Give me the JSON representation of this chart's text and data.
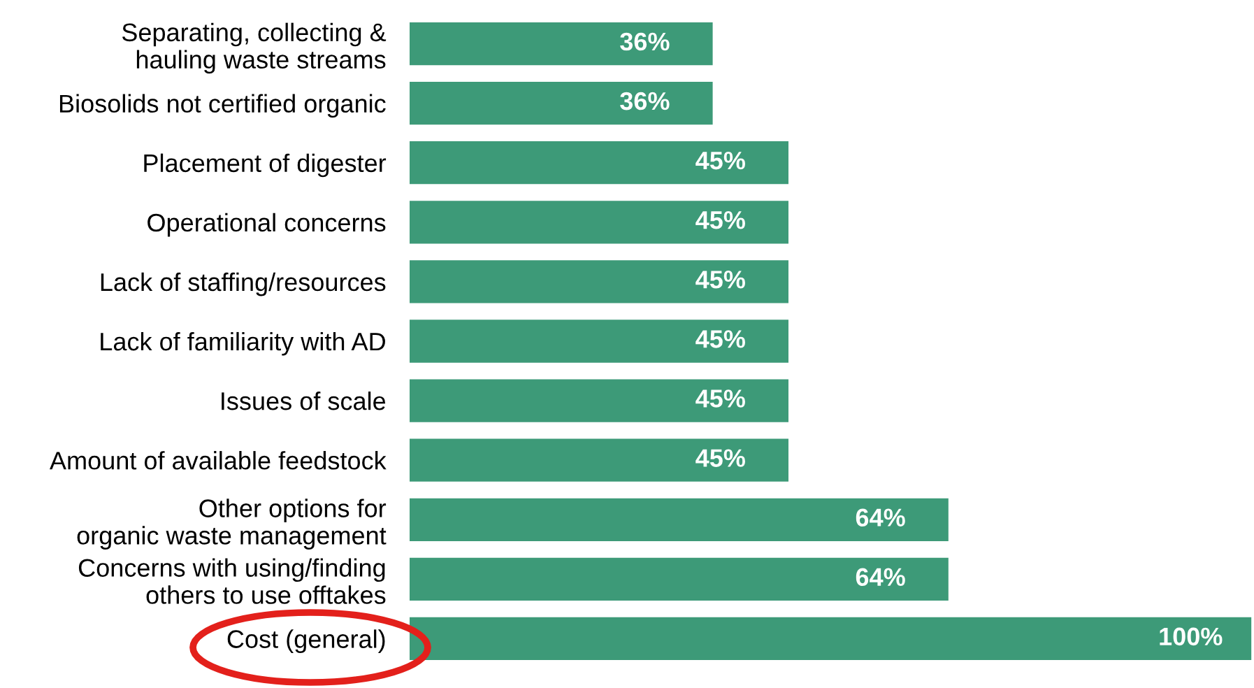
{
  "chart_data": {
    "type": "bar",
    "orientation": "horizontal",
    "categories": [
      "Separating, collecting &\nhauling waste streams",
      "Biosolids not certified organic",
      "Placement of digester",
      "Operational concerns",
      "Lack of staffing/resources",
      "Lack of familiarity with AD",
      "Issues of scale",
      "Amount of available feedstock",
      "Other options for\norganic waste management",
      "Concerns with using/finding\nothers to use offtakes",
      "Cost (general)"
    ],
    "values": [
      36,
      36,
      45,
      45,
      45,
      45,
      45,
      45,
      64,
      64,
      100
    ],
    "value_labels": [
      "36%",
      "36%",
      "45%",
      "45%",
      "45%",
      "45%",
      "45%",
      "45%",
      "64%",
      "64%",
      "100%"
    ],
    "color": "#3d9a78",
    "xlim": [
      0,
      100
    ],
    "grid": false,
    "legend": false,
    "tick_labels": "y"
  }
}
